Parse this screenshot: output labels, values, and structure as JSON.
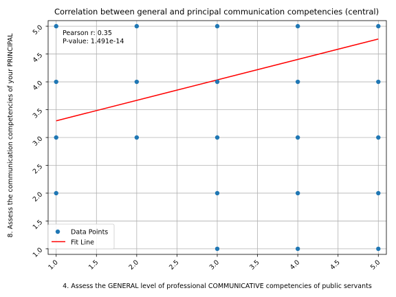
{
  "chart_data": {
    "type": "scatter",
    "title": "Correlation between general and principal communication competencies (central)",
    "xlabel": "4. Assess the GENERAL level of professional COMMUNICATIVE competencies of public servants",
    "ylabel": "8. Assess the communication competencies of your PRINCIPAL",
    "xlim": [
      0.9,
      5.1
    ],
    "ylim": [
      0.9,
      5.1
    ],
    "x_ticks": [
      "1.0",
      "1.5",
      "2.0",
      "2.5",
      "3.0",
      "3.5",
      "4.0",
      "4.5",
      "5.0"
    ],
    "y_ticks": [
      "1.0",
      "1.5",
      "2.0",
      "2.5",
      "3.0",
      "3.5",
      "4.0",
      "4.5",
      "5.0"
    ],
    "grid": true,
    "legend_position": "lower-left",
    "series": [
      {
        "name": "Data Points",
        "kind": "scatter",
        "color": "#1f77b4",
        "points": [
          [
            1,
            5
          ],
          [
            1,
            4
          ],
          [
            1,
            3
          ],
          [
            1,
            2
          ],
          [
            2,
            5
          ],
          [
            2,
            4
          ],
          [
            2,
            3
          ],
          [
            3,
            5
          ],
          [
            3,
            4
          ],
          [
            3,
            3
          ],
          [
            3,
            2
          ],
          [
            3,
            1
          ],
          [
            4,
            5
          ],
          [
            4,
            4
          ],
          [
            4,
            3
          ],
          [
            4,
            2
          ],
          [
            4,
            1
          ],
          [
            5,
            5
          ],
          [
            5,
            4
          ],
          [
            5,
            3
          ],
          [
            5,
            2
          ],
          [
            5,
            1
          ]
        ]
      },
      {
        "name": "Fit Line",
        "kind": "line",
        "color": "#ff0000",
        "points": [
          [
            1,
            3.3
          ],
          [
            5,
            4.77
          ]
        ]
      }
    ],
    "annotation": [
      "Pearson r: 0.35",
      "P-value: 1.491e-14"
    ]
  }
}
